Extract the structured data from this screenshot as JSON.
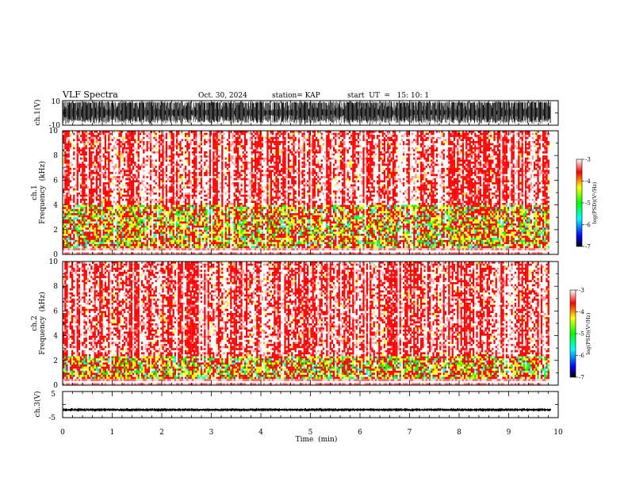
{
  "header": {
    "title": "VLF Spectra",
    "date": "Oct. 30, 2024",
    "station": "station= KAP",
    "start": "start  UT  =   15: 10: 1"
  },
  "chart_data": [
    {
      "type": "line",
      "name": "ch1-waveform",
      "ylabel": "ch.1(V)",
      "ylim": [
        -10,
        10
      ],
      "y_ticks": [
        "10",
        "-10"
      ],
      "xlim": [
        0,
        10
      ],
      "x": [
        0,
        9.85
      ],
      "note_values": "dense saturated waveform between -10 and 10 V"
    },
    {
      "type": "heatmap",
      "name": "ch1-spectrogram",
      "ylabel": "ch.1\nFrequency  (kHz)",
      "ylabel_lines": [
        "ch.1",
        "Frequency  (kHz)"
      ],
      "ylim": [
        0,
        10
      ],
      "y_ticks": [
        "0",
        "2",
        "4",
        "6",
        "8",
        "10"
      ],
      "xlim": [
        0,
        10
      ],
      "colorbar": {
        "label": "log(PSD)(V²/Hz)",
        "range": [
          -7,
          -3
        ],
        "ticks": [
          "-3",
          "-4",
          "-5",
          "-6",
          "-7"
        ]
      }
    },
    {
      "type": "heatmap",
      "name": "ch2-spectrogram",
      "ylabel": "ch.2\nFrequency  (kHz)",
      "ylabel_lines": [
        "ch.2",
        "Frequency  (kHz)"
      ],
      "ylim": [
        0,
        10
      ],
      "y_ticks": [
        "0",
        "2",
        "4",
        "6",
        "8",
        "10"
      ],
      "xlim": [
        0,
        10
      ],
      "colorbar": {
        "label": "log(PSD)(V²/Hz)",
        "range": [
          -7,
          -3
        ],
        "ticks": [
          "-3",
          "-4",
          "-5",
          "-6",
          "-7"
        ]
      }
    },
    {
      "type": "line",
      "name": "ch3-waveform",
      "ylabel": "ch.3(V)",
      "ylim": [
        -5,
        5
      ],
      "y_ticks": [
        "5",
        "-5"
      ],
      "xlim": [
        0,
        10
      ],
      "x": [
        0,
        9.85
      ],
      "note_values": "narrow band near -2 V"
    }
  ],
  "xaxis": {
    "label": "Time  (min)",
    "ticks": [
      "0",
      "1",
      "2",
      "3",
      "4",
      "5",
      "6",
      "7",
      "8",
      "9",
      "10"
    ]
  },
  "colormap": [
    "#000000",
    "#0000ff",
    "#00ffff",
    "#00ff00",
    "#ffff00",
    "#ff0000",
    "#ffffff"
  ]
}
